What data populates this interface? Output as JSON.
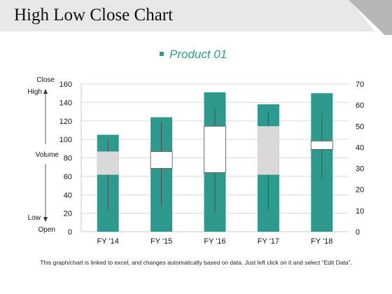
{
  "slide": {
    "title": "High Low Close Chart",
    "footer": "This graph/chart is linked to excel, and changes automatically based on data. Just left click on it and select “Edit Data”."
  },
  "colors": {
    "teal": "#2e9a8e",
    "gray": "#d9d9d9",
    "white": "#ffffff",
    "line": "#4d4d4d",
    "grid": "#d9d9d9",
    "header_band": "#e8e8e8",
    "header_corner": "#b7b7b7"
  },
  "chart_data": {
    "type": "bar",
    "legend": {
      "label": "Product 01",
      "position": "top"
    },
    "categories": [
      "FY '14",
      "FY '15",
      "FY '16",
      "FY '17",
      "FY '18"
    ],
    "series": [
      {
        "name": "Product 01",
        "values": [
          105,
          124,
          151,
          138,
          150
        ]
      }
    ],
    "stock": {
      "open": [
        27,
        30,
        28,
        27,
        39
      ],
      "close": [
        38,
        38,
        50,
        50,
        43
      ],
      "high": [
        43,
        52,
        58,
        57,
        56
      ],
      "low": [
        10,
        12,
        9,
        10,
        25
      ],
      "down": [
        true,
        false,
        false,
        true,
        false
      ]
    },
    "left_axis": {
      "ticks": [
        0,
        20,
        40,
        60,
        80,
        100,
        120,
        140,
        160
      ],
      "ylim": [
        0,
        160
      ]
    },
    "right_axis": {
      "ticks": [
        0,
        10,
        20,
        30,
        40,
        50,
        60,
        70
      ],
      "ylim": [
        0,
        70
      ]
    },
    "side_labels": {
      "close": "Close",
      "high": "High",
      "volume": "Volume",
      "low": "Low",
      "open": "Open"
    },
    "grid": true
  }
}
